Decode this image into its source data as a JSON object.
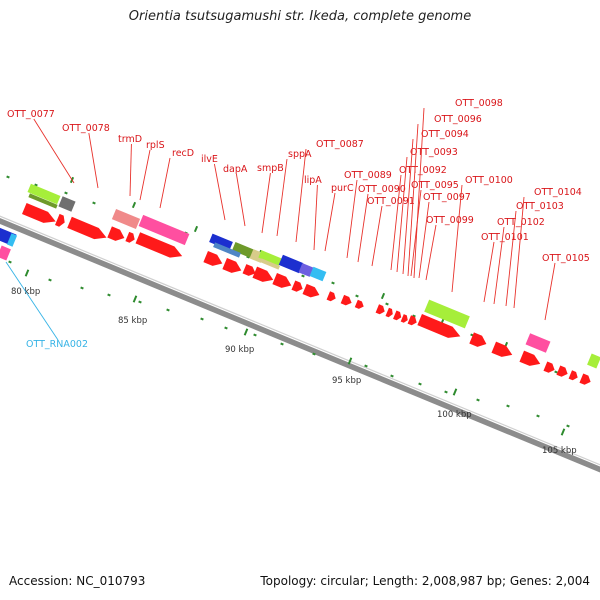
{
  "title": "Orientia tsutsugamushi str. Ikeda, complete genome",
  "footer": {
    "accession": "Accession: NC_010793",
    "summary": "Topology: circular; Length: 2,008,987 bp; Genes: 2,004"
  },
  "scale": {
    "labels": [
      "80 kbp",
      "85 kbp",
      "90 kbp",
      "95 kbp",
      "100 kbp",
      "105 kbp"
    ]
  },
  "colors": {
    "cds": "#ff1a1a",
    "label_line_red": "#e8322c",
    "rna_label": "#36b3e6",
    "backbone": "#8c8c8c",
    "tick": "#2e8b2e",
    "lime": "#a6ee3a",
    "pink": "#ff4fa0",
    "blue": "#1c2fcf",
    "salmon": "#f08a8a",
    "olive": "#6e9a2a",
    "khaki": "#d8cc8a",
    "lightblue": "#34bdf2",
    "gray": "#6f6f6f"
  },
  "gene_labels": [
    "OTT_0077",
    "OTT_0078",
    "trmD",
    "rplS",
    "recD",
    "ilvE",
    "dapA",
    "smpB",
    "sppA",
    "OTT_0087",
    "lipA",
    "purC",
    "OTT_0089",
    "OTT_0090",
    "OTT_0091",
    "OTT_0092",
    "OTT_0093",
    "OTT_0094",
    "OTT_0095",
    "OTT_0096",
    "OTT_0097",
    "OTT_0098",
    "OTT_0099",
    "OTT_0100",
    "OTT_0101",
    "OTT_0102",
    "OTT_0103",
    "OTT_0104",
    "OTT_0105"
  ],
  "rna_labels": [
    "OTT_RNA002"
  ]
}
